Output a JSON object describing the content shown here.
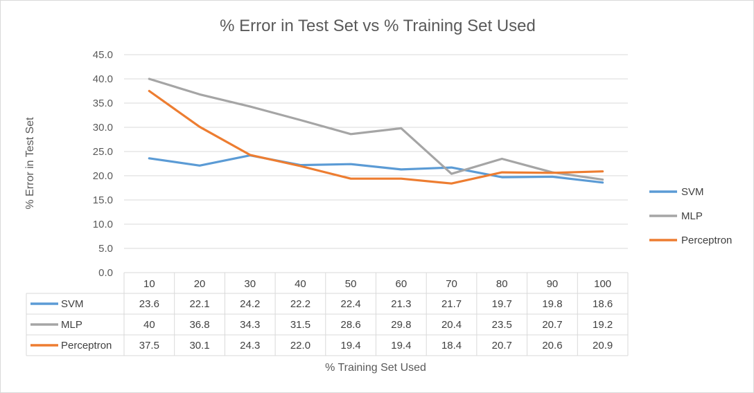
{
  "chart_data": {
    "type": "line",
    "title": "% Error in Test Set vs % Training Set Used",
    "xlabel": "% Training Set Used",
    "ylabel": "% Error in Test Set",
    "ylim": [
      0,
      45
    ],
    "yticks": [
      "0.0",
      "5.0",
      "10.0",
      "15.0",
      "20.0",
      "25.0",
      "30.0",
      "35.0",
      "40.0",
      "45.0"
    ],
    "categories": [
      "10",
      "20",
      "30",
      "40",
      "50",
      "60",
      "70",
      "80",
      "90",
      "100"
    ],
    "grid": true,
    "legend_position": "right",
    "data_table": true,
    "series": [
      {
        "name": "SVM",
        "color": "#5b9bd5",
        "values": [
          23.6,
          22.1,
          24.2,
          22.2,
          22.4,
          21.3,
          21.7,
          19.7,
          19.8,
          18.6
        ],
        "labels": [
          "23.6",
          "22.1",
          "24.2",
          "22.2",
          "22.4",
          "21.3",
          "21.7",
          "19.7",
          "19.8",
          "18.6"
        ]
      },
      {
        "name": "MLP",
        "color": "#a5a5a5",
        "values": [
          40,
          36.8,
          34.3,
          31.5,
          28.6,
          29.8,
          20.4,
          23.5,
          20.7,
          19.2
        ],
        "labels": [
          "40",
          "36.8",
          "34.3",
          "31.5",
          "28.6",
          "29.8",
          "20.4",
          "23.5",
          "20.7",
          "19.2"
        ]
      },
      {
        "name": "Perceptron",
        "color": "#ed7d31",
        "values": [
          37.5,
          30.1,
          24.3,
          22.0,
          19.4,
          19.4,
          18.4,
          20.7,
          20.6,
          20.9
        ],
        "labels": [
          "37.5",
          "30.1",
          "24.3",
          "22.0",
          "19.4",
          "19.4",
          "18.4",
          "20.7",
          "20.6",
          "20.9"
        ]
      }
    ]
  }
}
